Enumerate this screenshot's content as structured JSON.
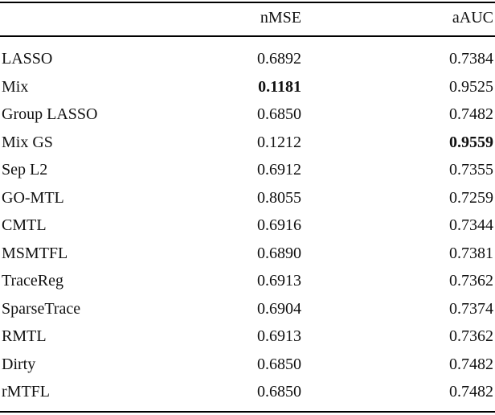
{
  "table": {
    "header": [
      "",
      "nMSE",
      "aAUC"
    ],
    "rows": [
      [
        "LASSO",
        "0.6892",
        "0.7384"
      ],
      [
        "Mix",
        "0.1181",
        "0.9525"
      ],
      [
        "Group LASSO",
        "0.6850",
        "0.7482"
      ],
      [
        "Mix GS",
        "0.1212",
        "0.9559"
      ],
      [
        "Sep L2",
        "0.6912",
        "0.7355"
      ],
      [
        "GO-MTL",
        "0.8055",
        "0.7259"
      ],
      [
        "CMTL",
        "0.6916",
        "0.7344"
      ],
      [
        "MSMTFL",
        "0.6890",
        "0.7381"
      ],
      [
        "TraceReg",
        "0.6913",
        "0.7362"
      ],
      [
        "SparseTrace",
        "0.6904",
        "0.7374"
      ],
      [
        "RMTL",
        "0.6913",
        "0.7362"
      ],
      [
        "Dirty",
        "0.6850",
        "0.7482"
      ],
      [
        "rMTFL",
        "0.6850",
        "0.7482"
      ]
    ]
  }
}
